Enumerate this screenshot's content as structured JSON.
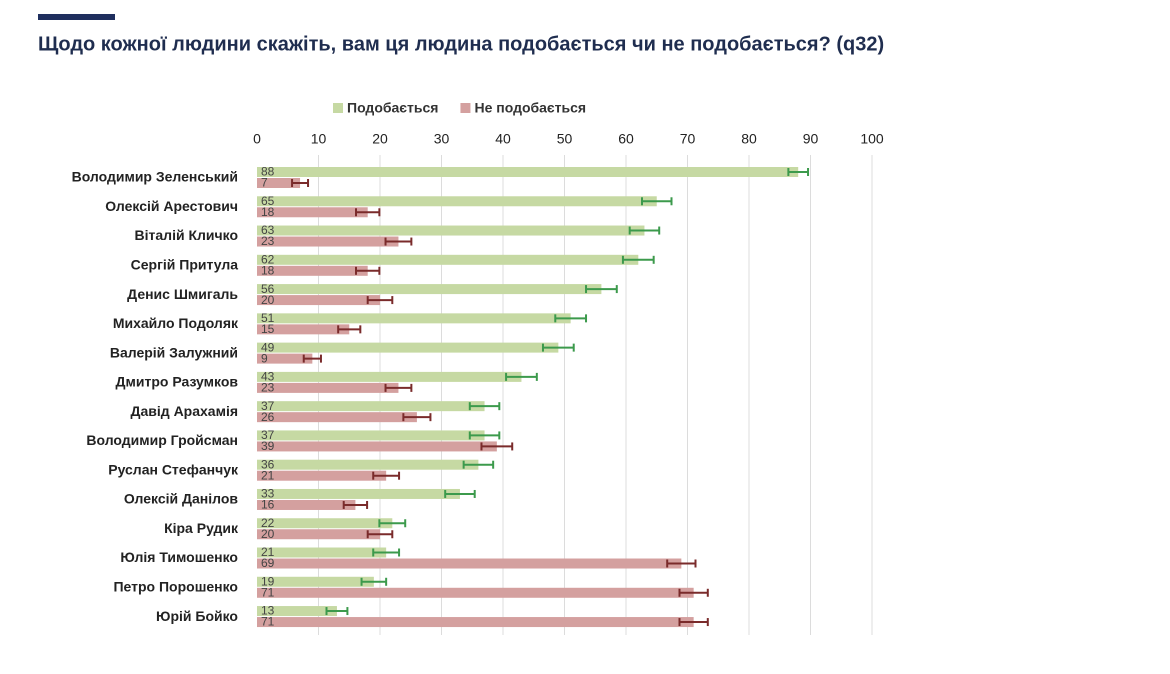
{
  "chart_data": {
    "type": "hbar",
    "title": "Щодо кожної людини скажіть, вам ця людина подобається чи не подобається? (q32)",
    "categories": [
      "Володимир Зеленський",
      "Олексій Арестович",
      "Віталій Кличко",
      "Сергій Притула",
      "Денис Шмигаль",
      "Михайло Подоляк",
      "Валерій Залужний",
      "Дмитро Разумков",
      "Давід Арахамія",
      "Володимир Гройсман",
      "Руслан Стефанчук",
      "Олексій Данілов",
      "Кіра Рудик",
      "Юлія Тимошенко",
      "Петро Порошенко",
      "Юрій Бойко"
    ],
    "series": [
      {
        "name": "Подобається",
        "color": "#c6d9a3",
        "error_color": "#3c9a4c",
        "values": [
          88,
          65,
          63,
          62,
          56,
          51,
          49,
          43,
          37,
          37,
          36,
          33,
          22,
          21,
          19,
          13
        ],
        "errors": [
          1.6,
          2.4,
          2.4,
          2.5,
          2.5,
          2.5,
          2.5,
          2.5,
          2.4,
          2.4,
          2.4,
          2.4,
          2.1,
          2.1,
          2.0,
          1.7
        ]
      },
      {
        "name": "Не подобається",
        "color": "#d4a09f",
        "error_color": "#7a2b2b",
        "values": [
          7,
          18,
          23,
          18,
          20,
          15,
          9,
          23,
          26,
          39,
          21,
          16,
          20,
          69,
          71,
          71
        ],
        "errors": [
          1.3,
          1.9,
          2.1,
          1.9,
          2.0,
          1.8,
          1.4,
          2.1,
          2.2,
          2.5,
          2.1,
          1.9,
          2.0,
          2.3,
          2.3,
          2.3
        ]
      }
    ],
    "xlim": [
      0,
      100
    ],
    "xticks": [
      0,
      10,
      20,
      30,
      40,
      50,
      60,
      70,
      80,
      90,
      100
    ],
    "grid": true
  }
}
